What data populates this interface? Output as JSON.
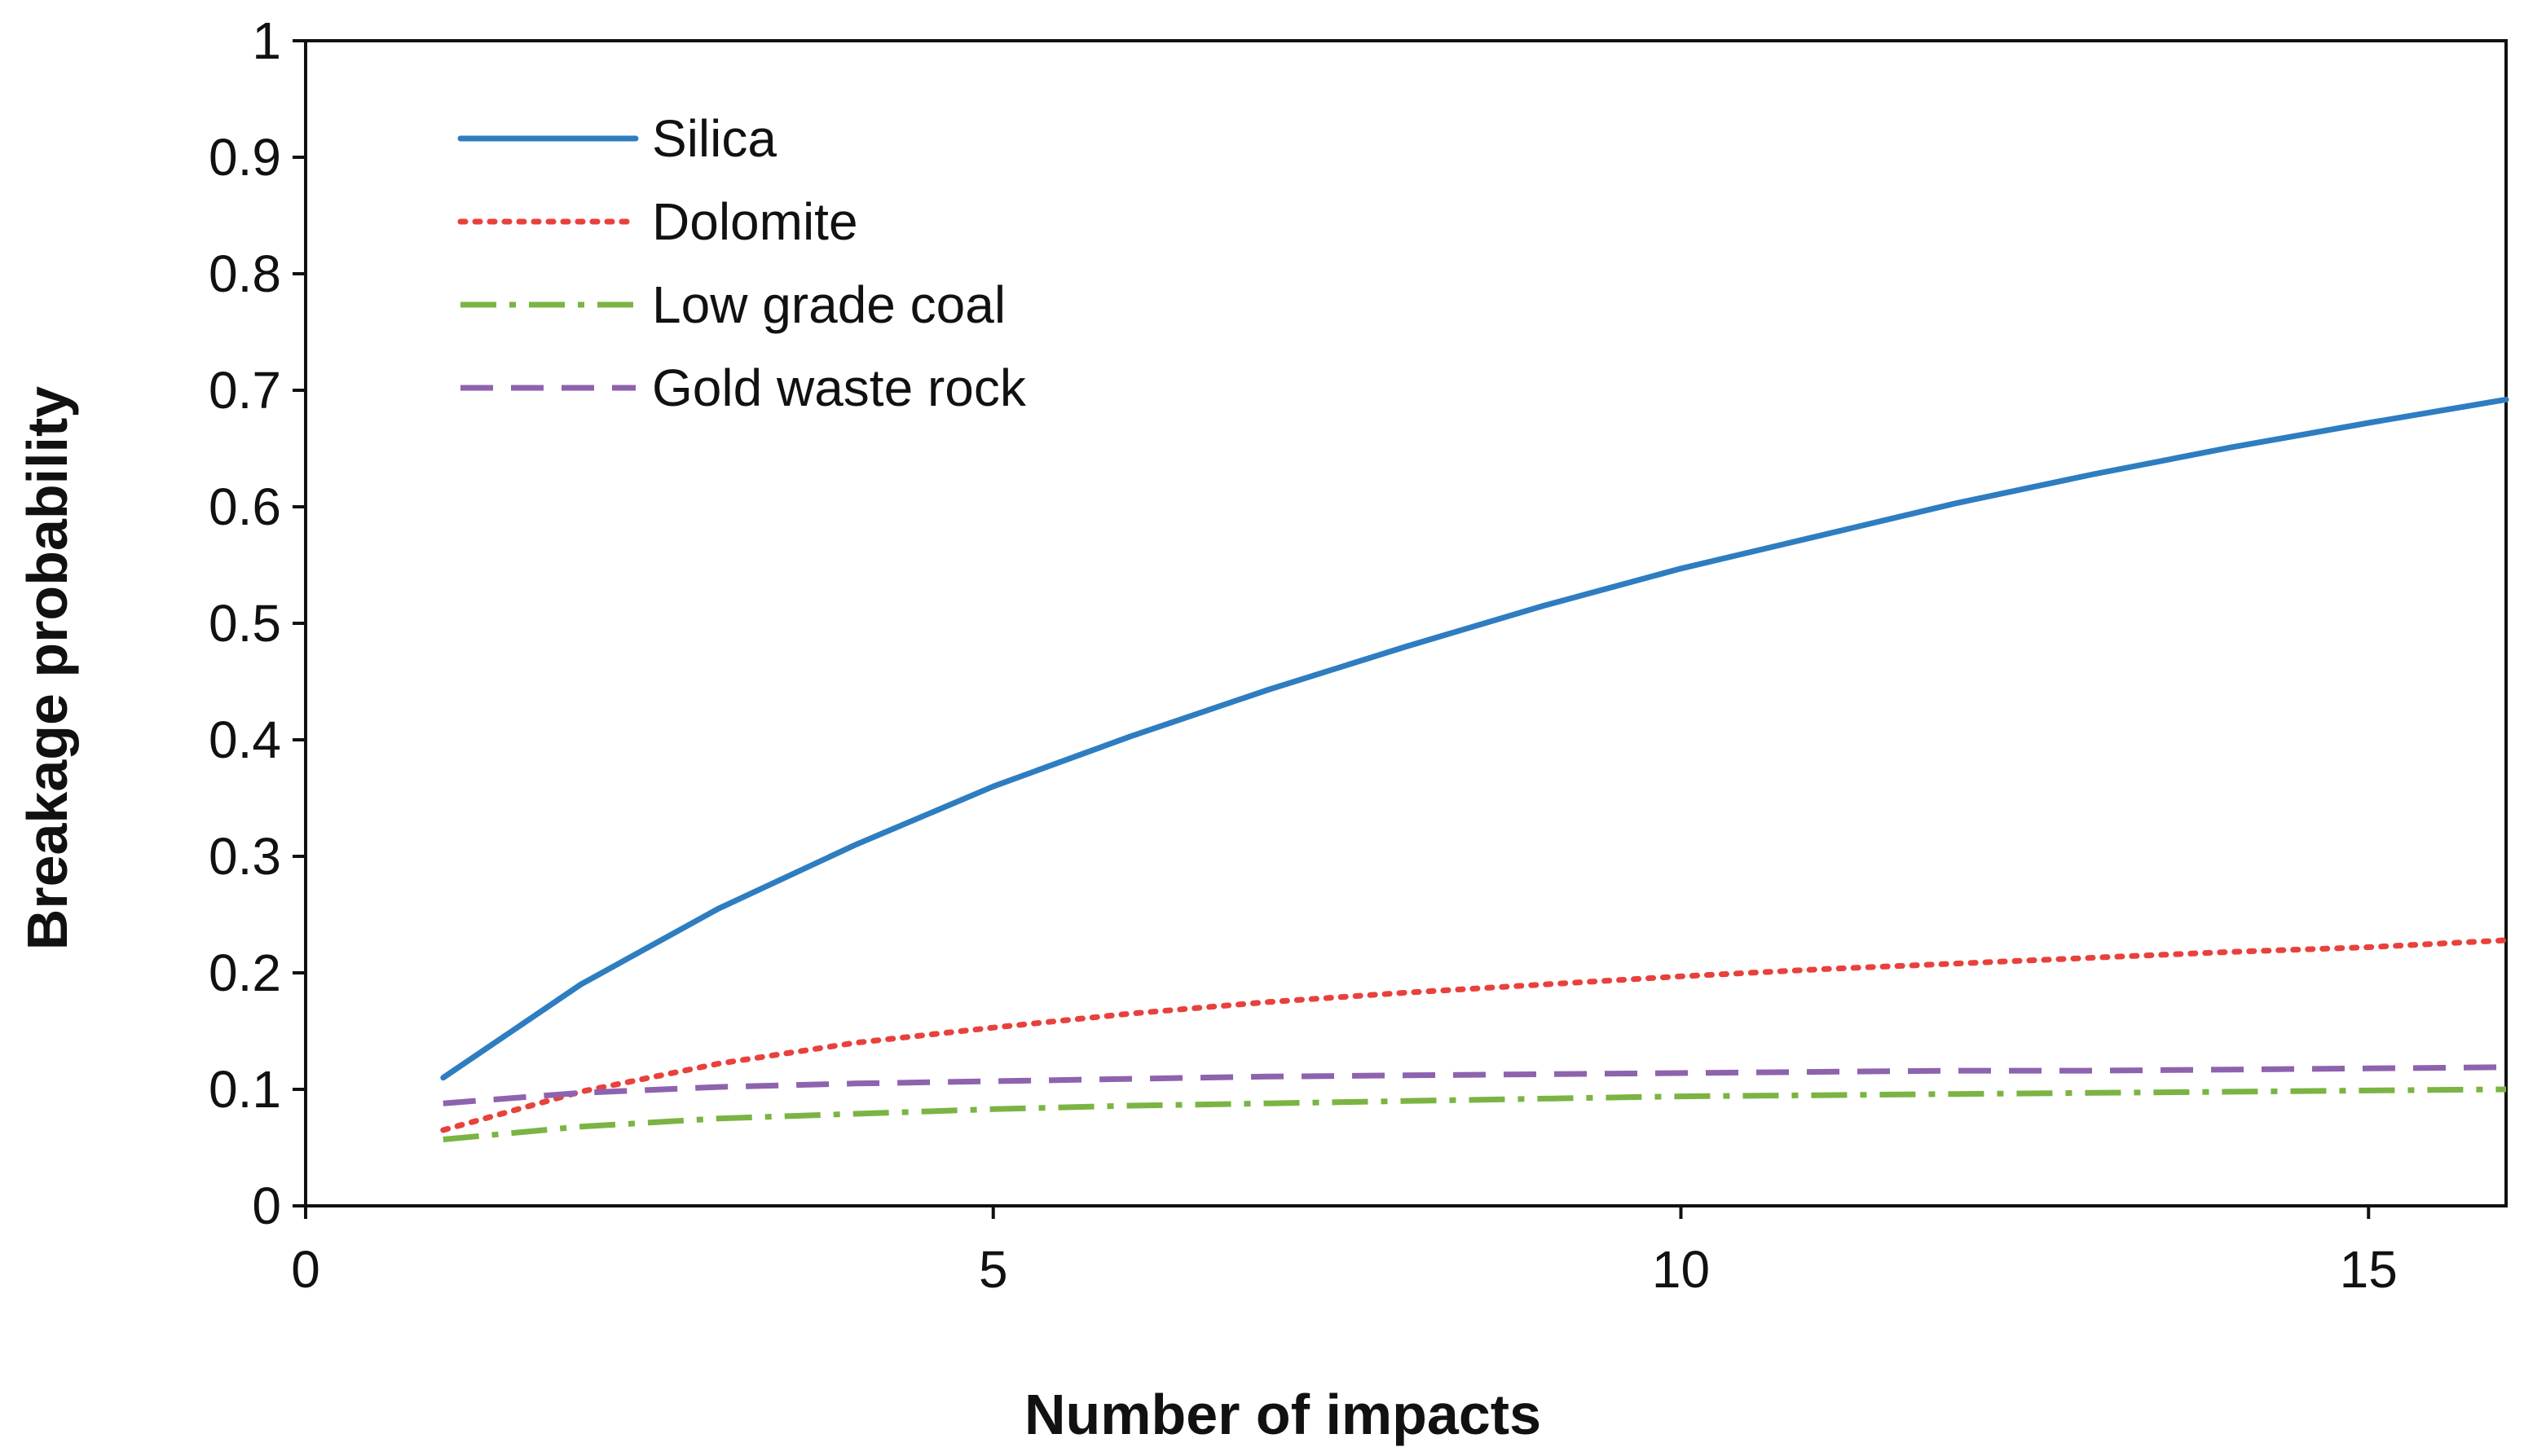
{
  "chart_data": {
    "type": "line",
    "title": "",
    "xlabel": "Number of impacts",
    "ylabel": "Breakage probability",
    "xlim": [
      0,
      16
    ],
    "ylim": [
      0,
      1
    ],
    "xticks": [
      0,
      5,
      10,
      15
    ],
    "yticks": [
      0,
      0.1,
      0.2,
      0.3,
      0.4,
      0.5,
      0.6,
      0.7,
      0.8,
      0.9,
      1
    ],
    "ytick_labels": [
      "0",
      "0.1",
      "0.2",
      "0.3",
      "0.4",
      "0.5",
      "0.6",
      "0.7",
      "0.8",
      "0.9",
      "1"
    ],
    "xtick_labels": [
      "0",
      "5",
      "10",
      "15"
    ],
    "grid": false,
    "legend_position": "top-left",
    "x": [
      1,
      2,
      3,
      4,
      5,
      6,
      7,
      8,
      9,
      10,
      11,
      12,
      13,
      14,
      15,
      16
    ],
    "series": [
      {
        "name": "Silica",
        "color": "#2E7DC1",
        "style": "solid",
        "values": [
          0.11,
          0.19,
          0.255,
          0.31,
          0.36,
          0.403,
          0.443,
          0.48,
          0.515,
          0.547,
          0.575,
          0.603,
          0.628,
          0.651,
          0.672,
          0.692
        ]
      },
      {
        "name": "Dolomite",
        "color": "#E8413C",
        "style": "dotted",
        "values": [
          0.065,
          0.098,
          0.122,
          0.14,
          0.153,
          0.165,
          0.175,
          0.183,
          0.19,
          0.197,
          0.203,
          0.208,
          0.213,
          0.218,
          0.222,
          0.228
        ]
      },
      {
        "name": "Low grade coal",
        "color": "#7BB443",
        "style": "dashdot",
        "values": [
          0.057,
          0.068,
          0.075,
          0.079,
          0.083,
          0.086,
          0.088,
          0.09,
          0.092,
          0.094,
          0.095,
          0.096,
          0.097,
          0.098,
          0.099,
          0.1
        ]
      },
      {
        "name": "Gold waste rock",
        "color": "#8E63AE",
        "style": "dashed",
        "values": [
          0.088,
          0.097,
          0.102,
          0.105,
          0.107,
          0.109,
          0.111,
          0.112,
          0.113,
          0.114,
          0.115,
          0.116,
          0.116,
          0.117,
          0.118,
          0.119
        ]
      }
    ]
  }
}
